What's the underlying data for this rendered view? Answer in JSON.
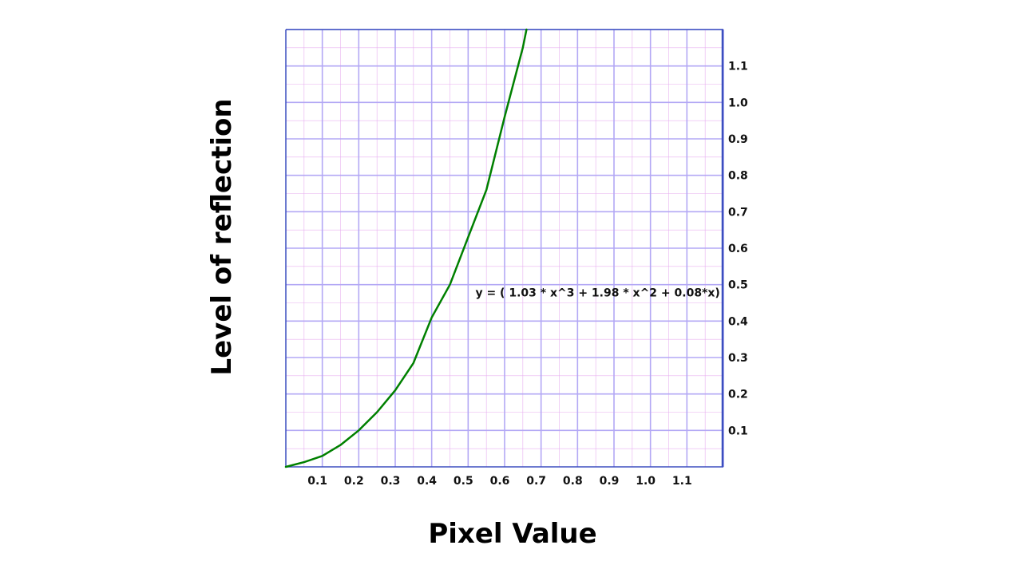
{
  "chart_data": {
    "type": "line",
    "xlabel": "Pixel Value",
    "ylabel": "Level of reflection",
    "xlim": [
      0,
      1.2
    ],
    "ylim": [
      0,
      1.2
    ],
    "x_ticks": [
      0.1,
      0.2,
      0.3,
      0.4,
      0.5,
      0.6,
      0.7,
      0.8,
      0.9,
      1.0,
      1.1
    ],
    "x_tick_labels": [
      "0.1",
      "0.2",
      "0.3",
      "0.4",
      "0.5",
      "0.6",
      "0.7",
      "0.8",
      "0.9",
      "1.0",
      "1.1"
    ],
    "y_ticks": [
      0.1,
      0.2,
      0.3,
      0.4,
      0.5,
      0.6,
      0.7,
      0.8,
      0.9,
      1.0,
      1.1
    ],
    "y_tick_labels": [
      "0.1",
      "0.2",
      "0.3",
      "0.4",
      "0.5",
      "0.6",
      "0.7",
      "0.8",
      "0.9",
      "1.0",
      "1.1"
    ],
    "y_axis_side": "right",
    "grid": true,
    "series": [
      {
        "x": [
          0.0,
          0.05,
          0.1,
          0.15,
          0.2,
          0.25,
          0.3,
          0.35,
          0.4,
          0.45,
          0.5,
          0.55,
          0.6,
          0.65,
          0.66
        ],
        "y": [
          0.0,
          0.013,
          0.03,
          0.06,
          0.1,
          0.15,
          0.21,
          0.285,
          0.41,
          0.5,
          0.63,
          0.76,
          0.96,
          1.15,
          1.2
        ],
        "color": "#008000"
      }
    ],
    "annotations": [
      {
        "text": "y = ( 1.03 * x^3 + 1.98 * x^2 + 0.08*x)",
        "x": 0.52,
        "y": 0.45
      }
    ],
    "colors": {
      "grid_major": "#b3a8f5",
      "grid_minor": "#e8b0f0",
      "axis": "#3b4fbf",
      "curve": "#008000"
    }
  }
}
